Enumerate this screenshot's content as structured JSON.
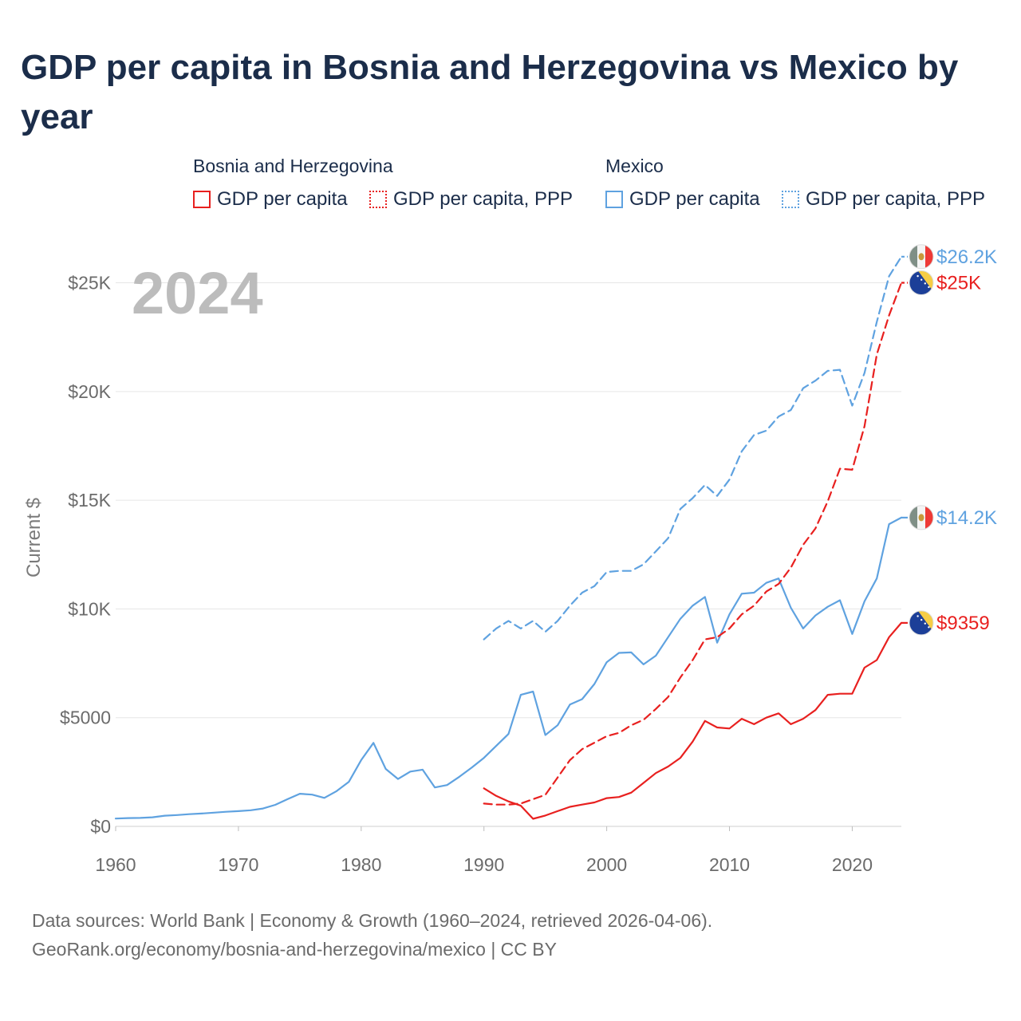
{
  "title": "GDP per capita in Bosnia and Herzegovina vs Mexico by year",
  "legend": {
    "groups": [
      {
        "label": "Bosnia and Herzegovina",
        "items": [
          {
            "label": "GDP per capita",
            "color": "#e8201f",
            "style": "solid"
          },
          {
            "label": "GDP per capita, PPP",
            "color": "#e8201f",
            "style": "dotted"
          }
        ]
      },
      {
        "label": "Mexico",
        "items": [
          {
            "label": "GDP per capita",
            "color": "#5fa2e0",
            "style": "solid"
          },
          {
            "label": "GDP per capita, PPP",
            "color": "#5fa2e0",
            "style": "dotted"
          }
        ]
      }
    ]
  },
  "footer": {
    "line1": "Data sources: World Bank | Economy & Growth (1960–2024, retrieved 2026-04-06).",
    "line2": "GeoRank.org/economy/bosnia-and-herzegovina/mexico | CC BY"
  },
  "chart_data": {
    "type": "line",
    "year_label": "2024",
    "ylabel": "Current $",
    "xlim": [
      1960,
      2024
    ],
    "ylim": [
      0,
      27000
    ],
    "x_ticks": [
      {
        "value": 1960,
        "label": "1960"
      },
      {
        "value": 1970,
        "label": "1970"
      },
      {
        "value": 1980,
        "label": "1980"
      },
      {
        "value": 1990,
        "label": "1990"
      },
      {
        "value": 2000,
        "label": "2000"
      },
      {
        "value": 2010,
        "label": "2010"
      },
      {
        "value": 2020,
        "label": "2020"
      }
    ],
    "y_ticks": [
      {
        "value": 0,
        "label": "$0"
      },
      {
        "value": 5000,
        "label": "$5000"
      },
      {
        "value": 10000,
        "label": "$10K"
      },
      {
        "value": 15000,
        "label": "$15K"
      },
      {
        "value": 20000,
        "label": "$20K"
      },
      {
        "value": 25000,
        "label": "$25K"
      }
    ],
    "series": [
      {
        "name": "Mexico GDP per capita",
        "country": "mexico",
        "color": "#5fa2e0",
        "dash": "none",
        "end_label": "$14.2K",
        "points": [
          [
            1960,
            360
          ],
          [
            1961,
            380
          ],
          [
            1962,
            390
          ],
          [
            1963,
            420
          ],
          [
            1964,
            490
          ],
          [
            1965,
            520
          ],
          [
            1966,
            560
          ],
          [
            1967,
            590
          ],
          [
            1968,
            630
          ],
          [
            1969,
            670
          ],
          [
            1970,
            700
          ],
          [
            1971,
            740
          ],
          [
            1972,
            820
          ],
          [
            1973,
            990
          ],
          [
            1974,
            1250
          ],
          [
            1975,
            1500
          ],
          [
            1976,
            1460
          ],
          [
            1977,
            1310
          ],
          [
            1978,
            1620
          ],
          [
            1979,
            2050
          ],
          [
            1980,
            3050
          ],
          [
            1981,
            3840
          ],
          [
            1982,
            2640
          ],
          [
            1983,
            2180
          ],
          [
            1984,
            2520
          ],
          [
            1985,
            2610
          ],
          [
            1986,
            1790
          ],
          [
            1987,
            1900
          ],
          [
            1988,
            2280
          ],
          [
            1989,
            2700
          ],
          [
            1990,
            3150
          ],
          [
            1991,
            3700
          ],
          [
            1992,
            4250
          ],
          [
            1993,
            6050
          ],
          [
            1994,
            6200
          ],
          [
            1995,
            4200
          ],
          [
            1996,
            4650
          ],
          [
            1997,
            5600
          ],
          [
            1998,
            5850
          ],
          [
            1999,
            6550
          ],
          [
            2000,
            7550
          ],
          [
            2001,
            7980
          ],
          [
            2002,
            8000
          ],
          [
            2003,
            7450
          ],
          [
            2004,
            7850
          ],
          [
            2005,
            8700
          ],
          [
            2006,
            9550
          ],
          [
            2007,
            10150
          ],
          [
            2008,
            10550
          ],
          [
            2009,
            8450
          ],
          [
            2010,
            9750
          ],
          [
            2011,
            10700
          ],
          [
            2012,
            10750
          ],
          [
            2013,
            11200
          ],
          [
            2014,
            11400
          ],
          [
            2015,
            10050
          ],
          [
            2016,
            9100
          ],
          [
            2017,
            9700
          ],
          [
            2018,
            10100
          ],
          [
            2019,
            10400
          ],
          [
            2020,
            8850
          ],
          [
            2021,
            10350
          ],
          [
            2022,
            11400
          ],
          [
            2023,
            13900
          ],
          [
            2024,
            14200
          ]
        ]
      },
      {
        "name": "Mexico GDP per capita, PPP",
        "country": "mexico",
        "color": "#5fa2e0",
        "dash": "10 6",
        "end_label": "$26.2K",
        "points": [
          [
            1990,
            8600
          ],
          [
            1991,
            9100
          ],
          [
            1992,
            9450
          ],
          [
            1993,
            9100
          ],
          [
            1994,
            9450
          ],
          [
            1995,
            8950
          ],
          [
            1996,
            9450
          ],
          [
            1997,
            10150
          ],
          [
            1998,
            10750
          ],
          [
            1999,
            11050
          ],
          [
            2000,
            11700
          ],
          [
            2001,
            11750
          ],
          [
            2002,
            11750
          ],
          [
            2003,
            12050
          ],
          [
            2004,
            12650
          ],
          [
            2005,
            13250
          ],
          [
            2006,
            14600
          ],
          [
            2007,
            15100
          ],
          [
            2008,
            15700
          ],
          [
            2009,
            15200
          ],
          [
            2010,
            15950
          ],
          [
            2011,
            17250
          ],
          [
            2012,
            18000
          ],
          [
            2013,
            18200
          ],
          [
            2014,
            18850
          ],
          [
            2015,
            19150
          ],
          [
            2016,
            20150
          ],
          [
            2017,
            20500
          ],
          [
            2018,
            20950
          ],
          [
            2019,
            21000
          ],
          [
            2020,
            19350
          ],
          [
            2021,
            20850
          ],
          [
            2022,
            23200
          ],
          [
            2023,
            25300
          ],
          [
            2024,
            26200
          ]
        ]
      },
      {
        "name": "Bosnia and Herzegovina GDP per capita",
        "country": "bosnia",
        "color": "#e8201f",
        "dash": "none",
        "end_label": "$9359",
        "points": [
          [
            1990,
            1750
          ],
          [
            1991,
            1400
          ],
          [
            1992,
            1150
          ],
          [
            1993,
            950
          ],
          [
            1994,
            350
          ],
          [
            1995,
            500
          ],
          [
            1996,
            700
          ],
          [
            1997,
            900
          ],
          [
            1998,
            1000
          ],
          [
            1999,
            1100
          ],
          [
            2000,
            1300
          ],
          [
            2001,
            1350
          ],
          [
            2002,
            1550
          ],
          [
            2003,
            2000
          ],
          [
            2004,
            2450
          ],
          [
            2005,
            2750
          ],
          [
            2006,
            3150
          ],
          [
            2007,
            3900
          ],
          [
            2008,
            4850
          ],
          [
            2009,
            4550
          ],
          [
            2010,
            4500
          ],
          [
            2011,
            4950
          ],
          [
            2012,
            4700
          ],
          [
            2013,
            5000
          ],
          [
            2014,
            5200
          ],
          [
            2015,
            4700
          ],
          [
            2016,
            4950
          ],
          [
            2017,
            5350
          ],
          [
            2018,
            6050
          ],
          [
            2019,
            6100
          ],
          [
            2020,
            6100
          ],
          [
            2021,
            7300
          ],
          [
            2022,
            7650
          ],
          [
            2023,
            8700
          ],
          [
            2024,
            9359
          ]
        ]
      },
      {
        "name": "Bosnia and Herzegovina GDP per capita, PPP",
        "country": "bosnia",
        "color": "#e8201f",
        "dash": "10 6",
        "end_label": "$25K",
        "points": [
          [
            1990,
            1050
          ],
          [
            1991,
            1000
          ],
          [
            1992,
            1000
          ],
          [
            1993,
            1050
          ],
          [
            1994,
            1250
          ],
          [
            1995,
            1450
          ],
          [
            1996,
            2250
          ],
          [
            1997,
            3050
          ],
          [
            1998,
            3550
          ],
          [
            1999,
            3850
          ],
          [
            2000,
            4150
          ],
          [
            2001,
            4300
          ],
          [
            2002,
            4650
          ],
          [
            2003,
            4900
          ],
          [
            2004,
            5400
          ],
          [
            2005,
            5950
          ],
          [
            2006,
            6850
          ],
          [
            2007,
            7650
          ],
          [
            2008,
            8600
          ],
          [
            2009,
            8700
          ],
          [
            2010,
            9100
          ],
          [
            2011,
            9750
          ],
          [
            2012,
            10150
          ],
          [
            2013,
            10800
          ],
          [
            2014,
            11150
          ],
          [
            2015,
            11900
          ],
          [
            2016,
            12950
          ],
          [
            2017,
            13700
          ],
          [
            2018,
            14950
          ],
          [
            2019,
            16450
          ],
          [
            2020,
            16400
          ],
          [
            2021,
            18400
          ],
          [
            2022,
            21700
          ],
          [
            2023,
            23500
          ],
          [
            2024,
            25000
          ]
        ]
      }
    ]
  }
}
